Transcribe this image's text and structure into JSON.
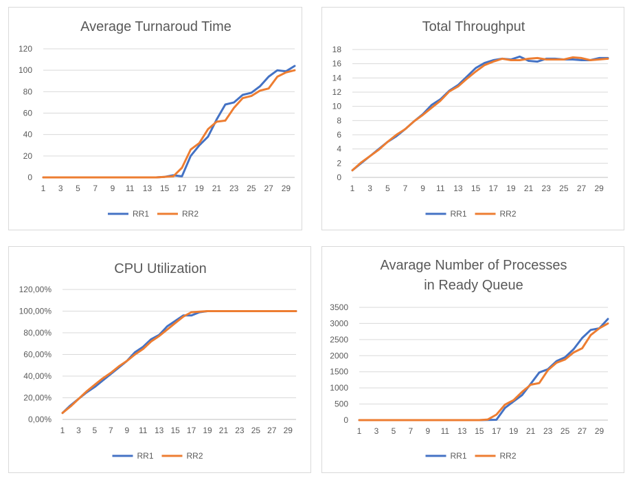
{
  "chart_data": [
    {
      "id": "tat",
      "type": "line",
      "title_lines": [
        "Average Turnaroud Time"
      ],
      "x": [
        1,
        2,
        3,
        4,
        5,
        6,
        7,
        8,
        9,
        10,
        11,
        12,
        13,
        14,
        15,
        16,
        17,
        18,
        19,
        20,
        21,
        22,
        23,
        24,
        25,
        26,
        27,
        28,
        29,
        30
      ],
      "xtick_labels": [
        "1",
        "3",
        "5",
        "7",
        "9",
        "11",
        "13",
        "15",
        "17",
        "19",
        "21",
        "23",
        "25",
        "27",
        "29"
      ],
      "ylim": [
        0,
        120
      ],
      "yticks": [
        0,
        20,
        40,
        60,
        80,
        100,
        120
      ],
      "ytick_labels": [
        "0",
        "20",
        "40",
        "60",
        "80",
        "100",
        "120"
      ],
      "grid": true,
      "legend": "bottom",
      "series": [
        {
          "name": "RR1",
          "color": "#4472c4",
          "values": [
            0,
            0,
            0,
            0,
            0,
            0,
            0,
            0,
            0,
            0,
            0,
            0,
            0,
            0,
            0.5,
            2,
            1,
            20,
            30,
            38,
            54,
            68,
            70,
            77,
            79,
            85,
            94,
            100,
            99,
            104
          ]
        },
        {
          "name": "RR2",
          "color": "#ed7d31",
          "values": [
            0,
            0,
            0,
            0,
            0,
            0,
            0,
            0,
            0,
            0,
            0,
            0,
            0,
            0,
            0.5,
            1,
            9,
            26,
            32,
            45,
            52,
            53,
            65,
            74,
            76,
            81,
            83,
            94,
            98,
            100
          ]
        }
      ]
    },
    {
      "id": "tp",
      "type": "line",
      "title_lines": [
        "Total Throughput"
      ],
      "x": [
        1,
        2,
        3,
        4,
        5,
        6,
        7,
        8,
        9,
        10,
        11,
        12,
        13,
        14,
        15,
        16,
        17,
        18,
        19,
        20,
        21,
        22,
        23,
        24,
        25,
        26,
        27,
        28,
        29,
        30
      ],
      "xtick_labels": [
        "1",
        "3",
        "5",
        "7",
        "9",
        "11",
        "13",
        "15",
        "17",
        "19",
        "21",
        "23",
        "25",
        "27",
        "29"
      ],
      "ylim": [
        0,
        18
      ],
      "yticks": [
        0,
        2,
        4,
        6,
        8,
        10,
        12,
        14,
        16,
        18
      ],
      "ytick_labels": [
        "0",
        "2",
        "4",
        "6",
        "8",
        "10",
        "12",
        "14",
        "16",
        "18"
      ],
      "grid": true,
      "legend": "bottom",
      "series": [
        {
          "name": "RR1",
          "color": "#4472c4",
          "values": [
            1,
            2,
            3,
            4,
            5,
            5.8,
            6.8,
            7.9,
            8.9,
            10.2,
            11,
            12.2,
            13,
            14.2,
            15.4,
            16.1,
            16.5,
            16.7,
            16.6,
            17,
            16.4,
            16.3,
            16.7,
            16.7,
            16.6,
            16.6,
            16.5,
            16.5,
            16.8,
            16.8
          ]
        },
        {
          "name": "RR2",
          "color": "#ed7d31",
          "values": [
            1,
            2.1,
            3,
            3.9,
            5,
            6,
            6.8,
            7.9,
            8.8,
            9.8,
            10.8,
            12.1,
            12.8,
            13.9,
            14.9,
            15.8,
            16.3,
            16.7,
            16.5,
            16.5,
            16.7,
            16.8,
            16.6,
            16.6,
            16.6,
            16.9,
            16.8,
            16.5,
            16.6,
            16.7
          ]
        }
      ]
    },
    {
      "id": "cpu",
      "type": "line",
      "title_lines": [
        "CPU Utilization"
      ],
      "x": [
        1,
        2,
        3,
        4,
        5,
        6,
        7,
        8,
        9,
        10,
        11,
        12,
        13,
        14,
        15,
        16,
        17,
        18,
        19,
        20,
        21,
        22,
        23,
        24,
        25,
        26,
        27,
        28,
        29,
        30
      ],
      "xtick_labels": [
        "1",
        "3",
        "5",
        "7",
        "9",
        "11",
        "13",
        "15",
        "17",
        "19",
        "21",
        "23",
        "25",
        "27",
        "29"
      ],
      "ylim": [
        0,
        120
      ],
      "yticks": [
        0,
        20,
        40,
        60,
        80,
        100,
        120
      ],
      "ytick_labels": [
        "0,00%",
        "20,00%",
        "40,00%",
        "60,00%",
        "80,00%",
        "100,00%",
        "120,00%"
      ],
      "grid": true,
      "legend": "bottom",
      "series": [
        {
          "name": "RR1",
          "color": "#4472c4",
          "values": [
            6,
            13,
            19,
            25,
            30,
            36,
            42,
            48,
            54,
            62,
            67,
            74,
            78,
            86,
            91,
            96,
            96,
            99,
            100,
            100,
            100,
            100,
            100,
            100,
            100,
            100,
            100,
            100,
            100,
            100
          ]
        },
        {
          "name": "RR2",
          "color": "#ed7d31",
          "values": [
            6,
            12,
            19,
            26,
            32,
            38,
            43,
            49,
            54,
            60,
            65,
            72,
            77,
            83,
            89,
            95,
            99,
            99.5,
            100,
            100,
            100,
            100,
            100,
            100,
            100,
            100,
            100,
            100,
            100,
            100
          ]
        }
      ]
    },
    {
      "id": "rq",
      "type": "line",
      "title_lines": [
        "Avarage Number of Processes",
        "in Ready Queue"
      ],
      "x": [
        1,
        2,
        3,
        4,
        5,
        6,
        7,
        8,
        9,
        10,
        11,
        12,
        13,
        14,
        15,
        16,
        17,
        18,
        19,
        20,
        21,
        22,
        23,
        24,
        25,
        26,
        27,
        28,
        29,
        30
      ],
      "xtick_labels": [
        "1",
        "3",
        "5",
        "7",
        "9",
        "11",
        "13",
        "15",
        "17",
        "19",
        "21",
        "23",
        "25",
        "27",
        "29"
      ],
      "ylim": [
        0,
        3500
      ],
      "yticks": [
        0,
        500,
        1000,
        1500,
        2000,
        2500,
        3000,
        3500
      ],
      "ytick_labels": [
        "0",
        "500",
        "1000",
        "1500",
        "2000",
        "2500",
        "3000",
        "3500"
      ],
      "grid": true,
      "legend": "bottom",
      "series": [
        {
          "name": "RR1",
          "color": "#4472c4",
          "values": [
            0,
            0,
            0,
            0,
            0,
            0,
            0,
            0,
            0,
            0,
            0,
            0,
            0,
            0,
            0,
            5,
            10,
            380,
            580,
            780,
            1130,
            1480,
            1580,
            1830,
            1950,
            2200,
            2550,
            2800,
            2850,
            3140
          ]
        },
        {
          "name": "RR2",
          "color": "#ed7d31",
          "values": [
            0,
            0,
            0,
            0,
            0,
            0,
            0,
            0,
            0,
            0,
            0,
            0,
            0,
            0,
            0,
            20,
            170,
            480,
            620,
            880,
            1100,
            1150,
            1550,
            1780,
            1880,
            2100,
            2230,
            2640,
            2850,
            3000
          ]
        }
      ]
    }
  ]
}
